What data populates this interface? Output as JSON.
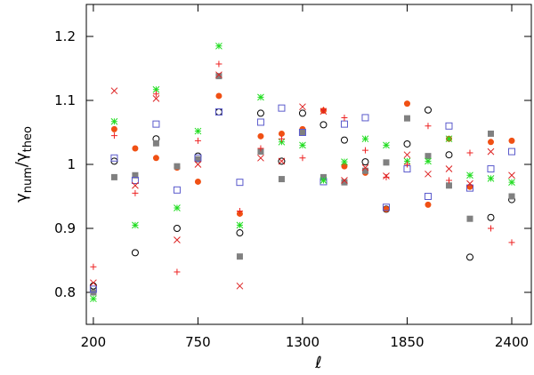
{
  "chart_data": {
    "type": "scatter",
    "xlabel": "ℓ",
    "ylabel_parts": [
      "γ",
      "num",
      "/γ",
      "theo"
    ],
    "x": [
      200,
      310,
      420,
      530,
      640,
      750,
      860,
      970,
      1080,
      1190,
      1300,
      1410,
      1520,
      1630,
      1740,
      1850,
      1960,
      2070,
      2180,
      2290,
      2400
    ],
    "xlim": [
      163,
      2503
    ],
    "xticks": [
      200,
      750,
      1300,
      1850,
      2400
    ],
    "ylim": [
      0.75,
      1.25
    ],
    "yticks": [
      0.8,
      0.9,
      1,
      1.1,
      1.2
    ],
    "series": [
      {
        "marker": "open-circle",
        "color": "#000000",
        "values": [
          0.81,
          1.005,
          0.862,
          1.04,
          0.9,
          1.013,
          1.082,
          0.893,
          1.08,
          1.005,
          1.08,
          1.062,
          1.038,
          1.004,
          0.93,
          1.032,
          1.085,
          1.015,
          0.855,
          0.917,
          0.945
        ]
      },
      {
        "marker": "filled-circle",
        "color": "#f05014",
        "values": [
          0.8,
          1.055,
          1.025,
          1.01,
          0.995,
          0.973,
          1.107,
          0.923,
          1.044,
          1.048,
          1.055,
          1.084,
          0.997,
          0.987,
          0.93,
          1.095,
          0.937,
          1.04,
          0.965,
          1.035,
          1.037
        ]
      },
      {
        "marker": "filled-square",
        "color": "#808080",
        "values": [
          0.8,
          0.98,
          0.983,
          1.033,
          0.997,
          1.008,
          1.138,
          0.856,
          1.02,
          0.977,
          1.05,
          0.98,
          0.972,
          0.99,
          1.003,
          1.072,
          1.013,
          0.967,
          0.915,
          1.048,
          0.95
        ]
      },
      {
        "marker": "open-square",
        "color": "#5a5acc",
        "values": [
          0.805,
          1.01,
          0.975,
          1.063,
          0.96,
          1.01,
          1.082,
          0.972,
          1.066,
          1.088,
          1.05,
          0.973,
          1.063,
          1.073,
          0.933,
          0.993,
          0.95,
          1.06,
          0.963,
          0.993,
          1.02
        ]
      },
      {
        "marker": "asterisk",
        "color": "#22dd22",
        "values": [
          0.79,
          1.067,
          0.905,
          1.117,
          0.932,
          1.052,
          1.185,
          0.905,
          1.105,
          1.035,
          1.03,
          0.975,
          1.004,
          1.04,
          1.03,
          1.005,
          1.005,
          1.04,
          0.983,
          0.978,
          0.972
        ]
      },
      {
        "marker": "plus",
        "color": "#ee2222",
        "values": [
          0.84,
          1.045,
          0.955,
          1.11,
          0.832,
          1.037,
          1.157,
          0.927,
          1.025,
          1.04,
          1.01,
          1.085,
          1.073,
          1.022,
          0.98,
          1.0,
          1.06,
          0.975,
          1.018,
          0.9,
          0.878
        ]
      },
      {
        "marker": "cross",
        "color": "#dd2222",
        "values": [
          0.815,
          1.115,
          0.967,
          1.103,
          0.882,
          1.0,
          1.14,
          0.81,
          1.01,
          1.005,
          1.09,
          1.083,
          0.975,
          0.995,
          0.982,
          1.015,
          0.985,
          0.993,
          0.97,
          1.02,
          0.983
        ]
      }
    ]
  }
}
